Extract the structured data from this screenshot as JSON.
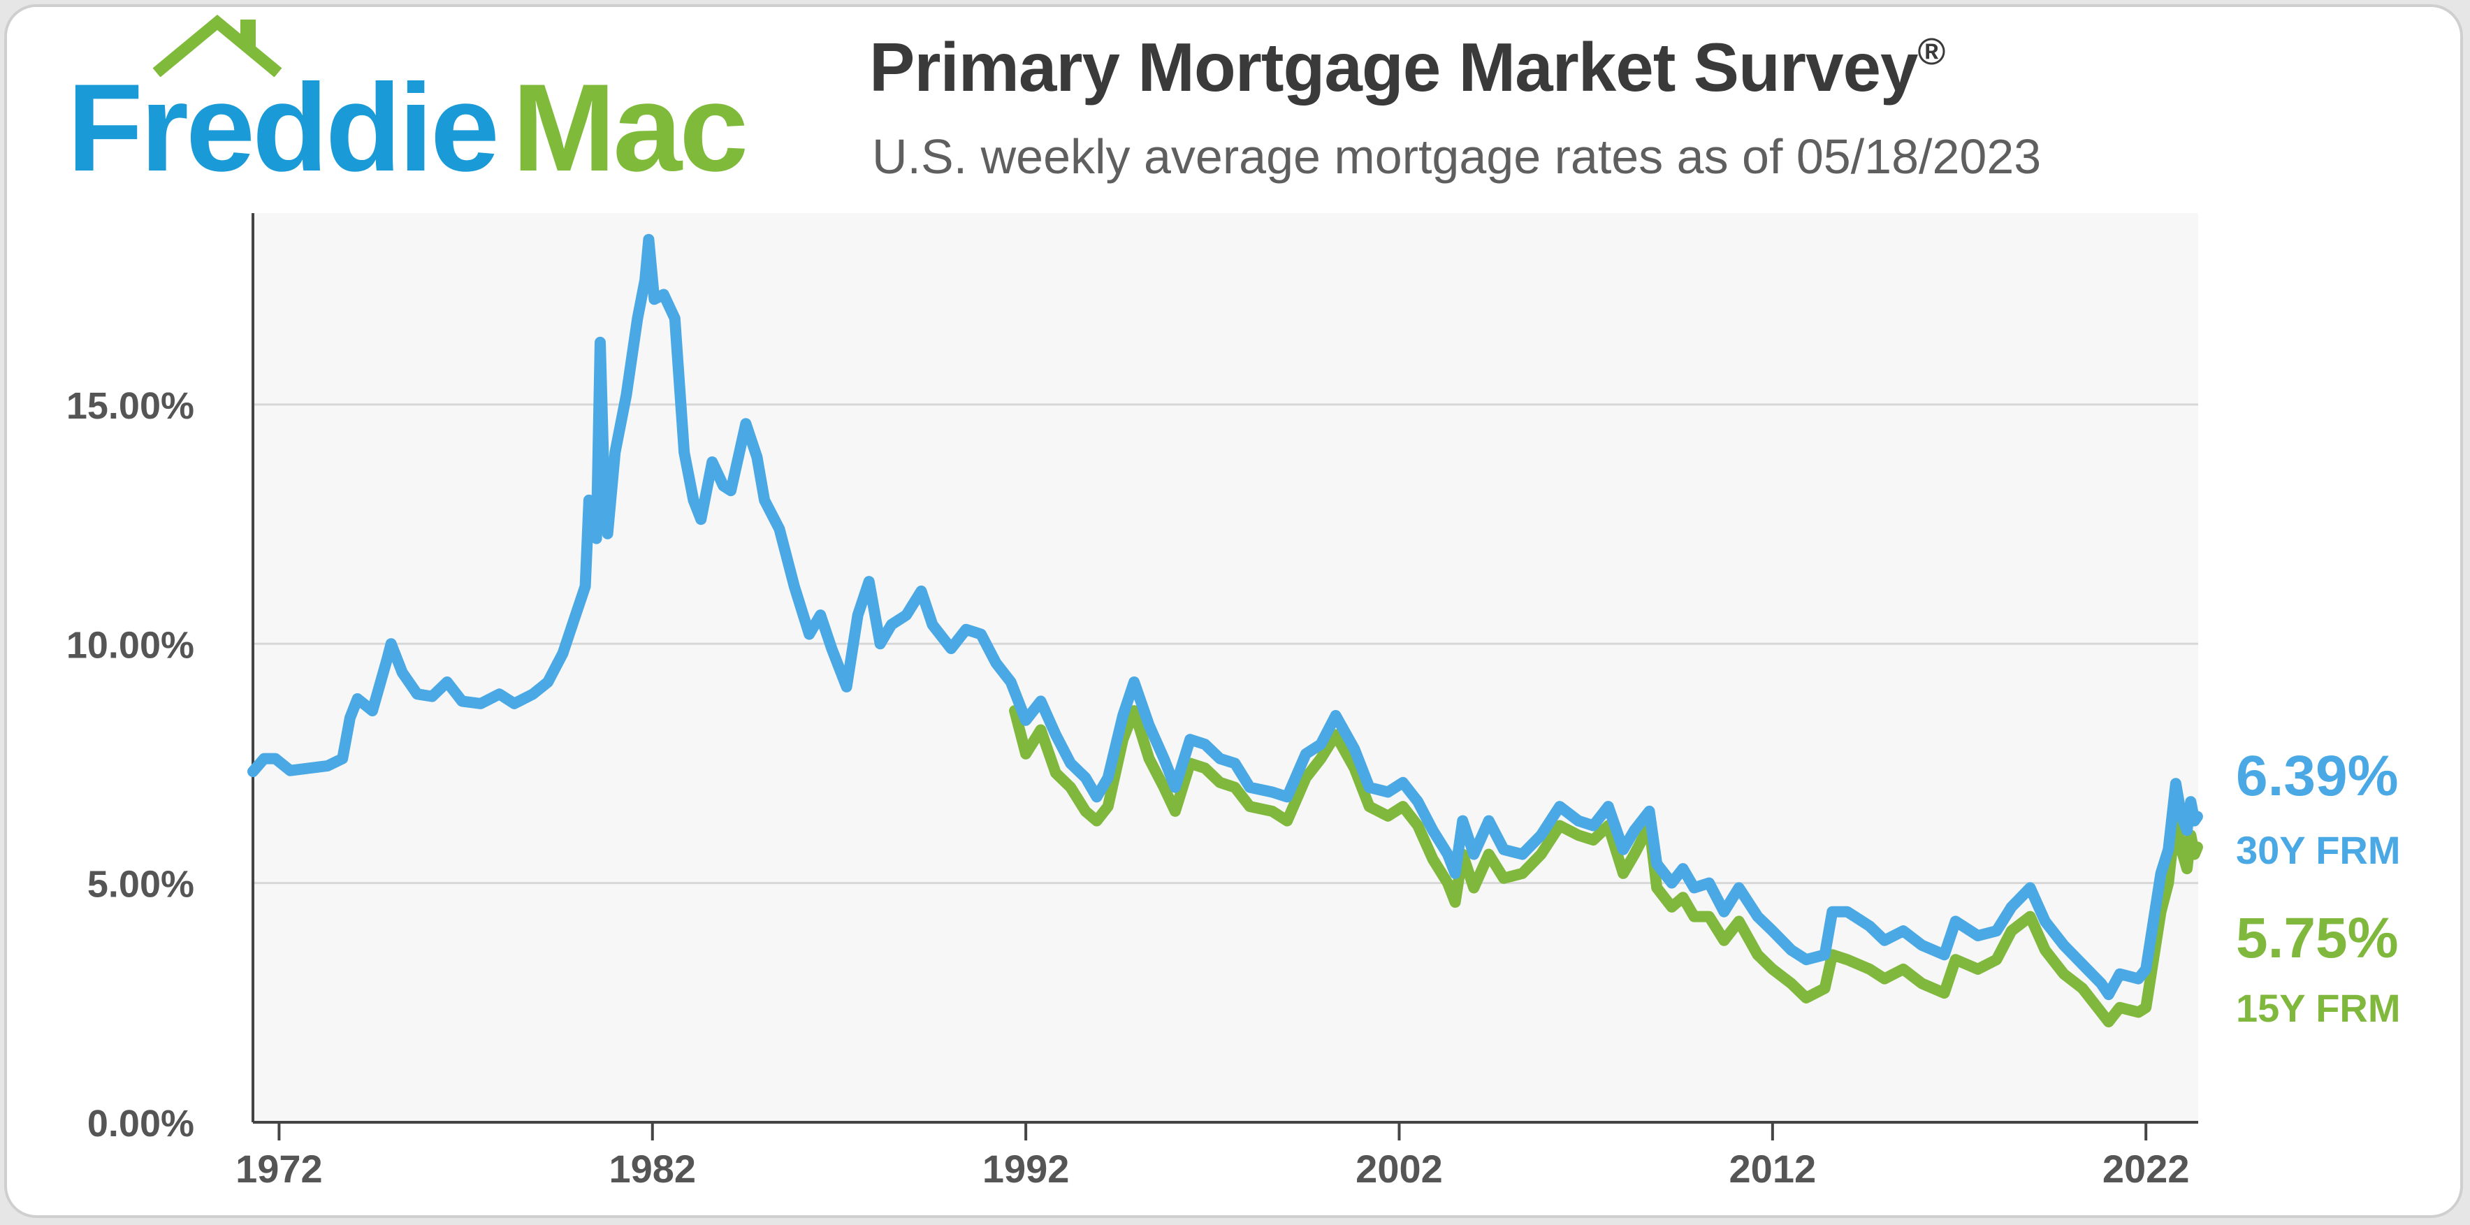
{
  "header": {
    "logo_part1": "Freddie",
    "logo_part2": "Mac",
    "title": "Primary Mortgage Market Survey",
    "title_mark": "®",
    "subtitle": "U.S. weekly average mortgage rates as of 05/18/2023"
  },
  "colors": {
    "freddie_blue": "#1a9bd7",
    "mac_green": "#7fba3a",
    "series_30y": "#4aa8e5",
    "series_15y": "#80b83d",
    "grid": "#d7d7d7",
    "plot_bg": "#f7f7f7"
  },
  "icons": {
    "logo_roof": "house-roof-icon"
  },
  "chart_data": {
    "type": "line",
    "title": "Primary Mortgage Market Survey",
    "subtitle": "U.S. weekly average mortgage rates as of 05/18/2023",
    "xlim": [
      1971.3,
      2023.4
    ],
    "ylim": [
      0,
      19
    ],
    "x_ticks": [
      1972,
      1982,
      1992,
      2002,
      2012,
      2022
    ],
    "x_tick_labels": [
      "1972",
      "1982",
      "1992",
      "2002",
      "2012",
      "2022"
    ],
    "y_ticks": [
      0,
      5,
      10,
      15
    ],
    "y_tick_labels": [
      "0.00%",
      "5.00%",
      "10.00%",
      "15.00%"
    ],
    "grid": true,
    "legend": "end-of-line labels at right",
    "series": [
      {
        "name": "30Y FRM",
        "end_value": "6.39%",
        "points": [
          [
            1971.3,
            7.33
          ],
          [
            1971.6,
            7.6
          ],
          [
            1971.9,
            7.6
          ],
          [
            1972.3,
            7.35
          ],
          [
            1972.8,
            7.4
          ],
          [
            1973.3,
            7.45
          ],
          [
            1973.7,
            7.6
          ],
          [
            1973.9,
            8.45
          ],
          [
            1974.1,
            8.85
          ],
          [
            1974.5,
            8.6
          ],
          [
            1974.9,
            9.7
          ],
          [
            1975.0,
            10.0
          ],
          [
            1975.3,
            9.4
          ],
          [
            1975.7,
            8.95
          ],
          [
            1976.1,
            8.9
          ],
          [
            1976.5,
            9.2
          ],
          [
            1976.9,
            8.8
          ],
          [
            1977.4,
            8.75
          ],
          [
            1977.9,
            8.95
          ],
          [
            1978.3,
            8.75
          ],
          [
            1978.8,
            8.95
          ],
          [
            1979.2,
            9.2
          ],
          [
            1979.6,
            9.8
          ],
          [
            1979.9,
            10.5
          ],
          [
            1980.2,
            11.2
          ],
          [
            1980.3,
            13.0
          ],
          [
            1980.5,
            12.2
          ],
          [
            1980.6,
            16.3
          ],
          [
            1980.7,
            13.5
          ],
          [
            1980.8,
            12.3
          ],
          [
            1981.0,
            14.0
          ],
          [
            1981.3,
            15.2
          ],
          [
            1981.6,
            16.8
          ],
          [
            1981.8,
            17.6
          ],
          [
            1981.9,
            18.45
          ],
          [
            1982.05,
            17.2
          ],
          [
            1982.3,
            17.3
          ],
          [
            1982.6,
            16.8
          ],
          [
            1982.85,
            14.0
          ],
          [
            1983.1,
            13.0
          ],
          [
            1983.3,
            12.6
          ],
          [
            1983.6,
            13.8
          ],
          [
            1983.9,
            13.3
          ],
          [
            1984.1,
            13.2
          ],
          [
            1984.5,
            14.6
          ],
          [
            1984.8,
            13.9
          ],
          [
            1985.0,
            13.0
          ],
          [
            1985.4,
            12.4
          ],
          [
            1985.8,
            11.2
          ],
          [
            1986.2,
            10.2
          ],
          [
            1986.5,
            10.6
          ],
          [
            1986.8,
            9.9
          ],
          [
            1987.2,
            9.1
          ],
          [
            1987.5,
            10.6
          ],
          [
            1987.8,
            11.3
          ],
          [
            1988.1,
            10.0
          ],
          [
            1988.4,
            10.4
          ],
          [
            1988.8,
            10.6
          ],
          [
            1989.2,
            11.1
          ],
          [
            1989.5,
            10.4
          ],
          [
            1990.0,
            9.9
          ],
          [
            1990.4,
            10.3
          ],
          [
            1990.8,
            10.2
          ],
          [
            1991.2,
            9.6
          ],
          [
            1991.6,
            9.2
          ],
          [
            1992.0,
            8.4
          ],
          [
            1992.4,
            8.8
          ],
          [
            1992.8,
            8.1
          ],
          [
            1993.2,
            7.5
          ],
          [
            1993.6,
            7.2
          ],
          [
            1993.9,
            6.8
          ],
          [
            1994.2,
            7.2
          ],
          [
            1994.6,
            8.5
          ],
          [
            1994.9,
            9.2
          ],
          [
            1995.3,
            8.3
          ],
          [
            1995.7,
            7.6
          ],
          [
            1996.0,
            7.0
          ],
          [
            1996.4,
            8.0
          ],
          [
            1996.8,
            7.9
          ],
          [
            1997.2,
            7.6
          ],
          [
            1997.6,
            7.5
          ],
          [
            1998.0,
            7.0
          ],
          [
            1998.6,
            6.9
          ],
          [
            1999.0,
            6.8
          ],
          [
            1999.5,
            7.7
          ],
          [
            1999.9,
            7.9
          ],
          [
            2000.3,
            8.5
          ],
          [
            2000.8,
            7.8
          ],
          [
            2001.2,
            7.0
          ],
          [
            2001.7,
            6.9
          ],
          [
            2002.1,
            7.1
          ],
          [
            2002.5,
            6.7
          ],
          [
            2002.9,
            6.1
          ],
          [
            2003.3,
            5.6
          ],
          [
            2003.5,
            5.2
          ],
          [
            2003.7,
            6.3
          ],
          [
            2004.0,
            5.6
          ],
          [
            2004.4,
            6.3
          ],
          [
            2004.8,
            5.7
          ],
          [
            2005.3,
            5.6
          ],
          [
            2005.8,
            6.0
          ],
          [
            2006.3,
            6.6
          ],
          [
            2006.8,
            6.3
          ],
          [
            2007.2,
            6.2
          ],
          [
            2007.6,
            6.6
          ],
          [
            2008.0,
            5.7
          ],
          [
            2008.3,
            6.1
          ],
          [
            2008.7,
            6.5
          ],
          [
            2008.9,
            5.4
          ],
          [
            2009.3,
            5.0
          ],
          [
            2009.6,
            5.3
          ],
          [
            2009.9,
            4.9
          ],
          [
            2010.3,
            5.0
          ],
          [
            2010.7,
            4.4
          ],
          [
            2011.1,
            4.9
          ],
          [
            2011.6,
            4.3
          ],
          [
            2012.0,
            4.0
          ],
          [
            2012.5,
            3.6
          ],
          [
            2012.9,
            3.4
          ],
          [
            2013.4,
            3.5
          ],
          [
            2013.6,
            4.4
          ],
          [
            2014.0,
            4.4
          ],
          [
            2014.6,
            4.1
          ],
          [
            2015.0,
            3.8
          ],
          [
            2015.5,
            4.0
          ],
          [
            2016.0,
            3.7
          ],
          [
            2016.6,
            3.5
          ],
          [
            2016.9,
            4.2
          ],
          [
            2017.5,
            3.9
          ],
          [
            2018.0,
            4.0
          ],
          [
            2018.4,
            4.5
          ],
          [
            2018.9,
            4.9
          ],
          [
            2019.3,
            4.2
          ],
          [
            2019.8,
            3.7
          ],
          [
            2020.3,
            3.3
          ],
          [
            2020.8,
            2.9
          ],
          [
            2021.0,
            2.67
          ],
          [
            2021.3,
            3.1
          ],
          [
            2021.8,
            3.0
          ],
          [
            2022.0,
            3.2
          ],
          [
            2022.2,
            4.2
          ],
          [
            2022.4,
            5.2
          ],
          [
            2022.6,
            5.7
          ],
          [
            2022.8,
            7.08
          ],
          [
            2022.95,
            6.4
          ],
          [
            2023.1,
            6.1
          ],
          [
            2023.2,
            6.7
          ],
          [
            2023.3,
            6.3
          ],
          [
            2023.38,
            6.39
          ]
        ]
      },
      {
        "name": "15Y FRM",
        "end_value": "5.75%",
        "points": [
          [
            1991.7,
            8.6
          ],
          [
            1992.0,
            7.7
          ],
          [
            1992.4,
            8.2
          ],
          [
            1992.8,
            7.3
          ],
          [
            1993.2,
            7.0
          ],
          [
            1993.6,
            6.5
          ],
          [
            1993.9,
            6.3
          ],
          [
            1994.2,
            6.6
          ],
          [
            1994.6,
            8.0
          ],
          [
            1994.9,
            8.6
          ],
          [
            1995.3,
            7.6
          ],
          [
            1995.7,
            7.0
          ],
          [
            1996.0,
            6.5
          ],
          [
            1996.4,
            7.5
          ],
          [
            1996.8,
            7.4
          ],
          [
            1997.2,
            7.1
          ],
          [
            1997.6,
            7.0
          ],
          [
            1998.0,
            6.6
          ],
          [
            1998.6,
            6.5
          ],
          [
            1999.0,
            6.3
          ],
          [
            1999.5,
            7.2
          ],
          [
            1999.9,
            7.6
          ],
          [
            2000.3,
            8.1
          ],
          [
            2000.8,
            7.4
          ],
          [
            2001.2,
            6.6
          ],
          [
            2001.7,
            6.4
          ],
          [
            2002.1,
            6.6
          ],
          [
            2002.5,
            6.2
          ],
          [
            2002.9,
            5.5
          ],
          [
            2003.3,
            5.0
          ],
          [
            2003.5,
            4.6
          ],
          [
            2003.7,
            5.6
          ],
          [
            2004.0,
            4.9
          ],
          [
            2004.4,
            5.6
          ],
          [
            2004.8,
            5.1
          ],
          [
            2005.3,
            5.2
          ],
          [
            2005.8,
            5.6
          ],
          [
            2006.3,
            6.2
          ],
          [
            2006.8,
            6.0
          ],
          [
            2007.2,
            5.9
          ],
          [
            2007.6,
            6.2
          ],
          [
            2008.0,
            5.2
          ],
          [
            2008.3,
            5.6
          ],
          [
            2008.7,
            6.2
          ],
          [
            2008.9,
            4.9
          ],
          [
            2009.3,
            4.5
          ],
          [
            2009.6,
            4.7
          ],
          [
            2009.9,
            4.3
          ],
          [
            2010.3,
            4.3
          ],
          [
            2010.7,
            3.8
          ],
          [
            2011.1,
            4.2
          ],
          [
            2011.6,
            3.5
          ],
          [
            2012.0,
            3.2
          ],
          [
            2012.5,
            2.9
          ],
          [
            2012.9,
            2.6
          ],
          [
            2013.4,
            2.8
          ],
          [
            2013.6,
            3.5
          ],
          [
            2014.0,
            3.4
          ],
          [
            2014.6,
            3.2
          ],
          [
            2015.0,
            3.0
          ],
          [
            2015.5,
            3.2
          ],
          [
            2016.0,
            2.9
          ],
          [
            2016.6,
            2.7
          ],
          [
            2016.9,
            3.4
          ],
          [
            2017.5,
            3.2
          ],
          [
            2018.0,
            3.4
          ],
          [
            2018.4,
            4.0
          ],
          [
            2018.9,
            4.3
          ],
          [
            2019.3,
            3.6
          ],
          [
            2019.8,
            3.1
          ],
          [
            2020.3,
            2.8
          ],
          [
            2020.8,
            2.3
          ],
          [
            2021.0,
            2.1
          ],
          [
            2021.3,
            2.4
          ],
          [
            2021.8,
            2.3
          ],
          [
            2022.0,
            2.4
          ],
          [
            2022.2,
            3.4
          ],
          [
            2022.4,
            4.4
          ],
          [
            2022.6,
            5.0
          ],
          [
            2022.8,
            6.4
          ],
          [
            2022.95,
            5.7
          ],
          [
            2023.1,
            5.3
          ],
          [
            2023.2,
            6.0
          ],
          [
            2023.3,
            5.6
          ],
          [
            2023.38,
            5.75
          ]
        ]
      }
    ]
  }
}
